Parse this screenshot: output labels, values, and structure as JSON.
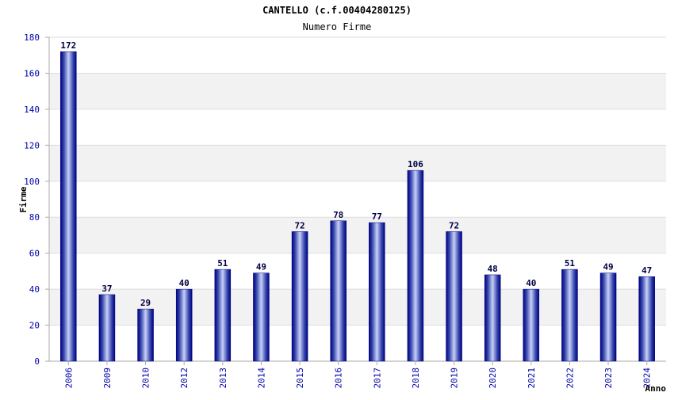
{
  "chart_data": {
    "type": "bar",
    "title": "CANTELLO (c.f.00404280125)",
    "subtitle": "Numero Firme",
    "xlabel": "Anno",
    "ylabel": "Firme",
    "categories": [
      "2006",
      "2009",
      "2010",
      "2012",
      "2013",
      "2014",
      "2015",
      "2016",
      "2017",
      "2018",
      "2019",
      "2020",
      "2021",
      "2022",
      "2023",
      "2024"
    ],
    "values": [
      172,
      37,
      29,
      40,
      51,
      49,
      72,
      78,
      77,
      106,
      72,
      48,
      40,
      51,
      49,
      47
    ],
    "ylim": [
      0,
      180
    ],
    "yticks": [
      0,
      20,
      40,
      60,
      80,
      100,
      120,
      140,
      160,
      180
    ],
    "grid": true,
    "colors": {
      "bar_edge": "#000080",
      "bar_center": "#c8d0f8",
      "bar_mid": "#3344aa",
      "band": "#f2f2f2",
      "tick_text": "#0000aa",
      "label_text": "#000044"
    }
  }
}
